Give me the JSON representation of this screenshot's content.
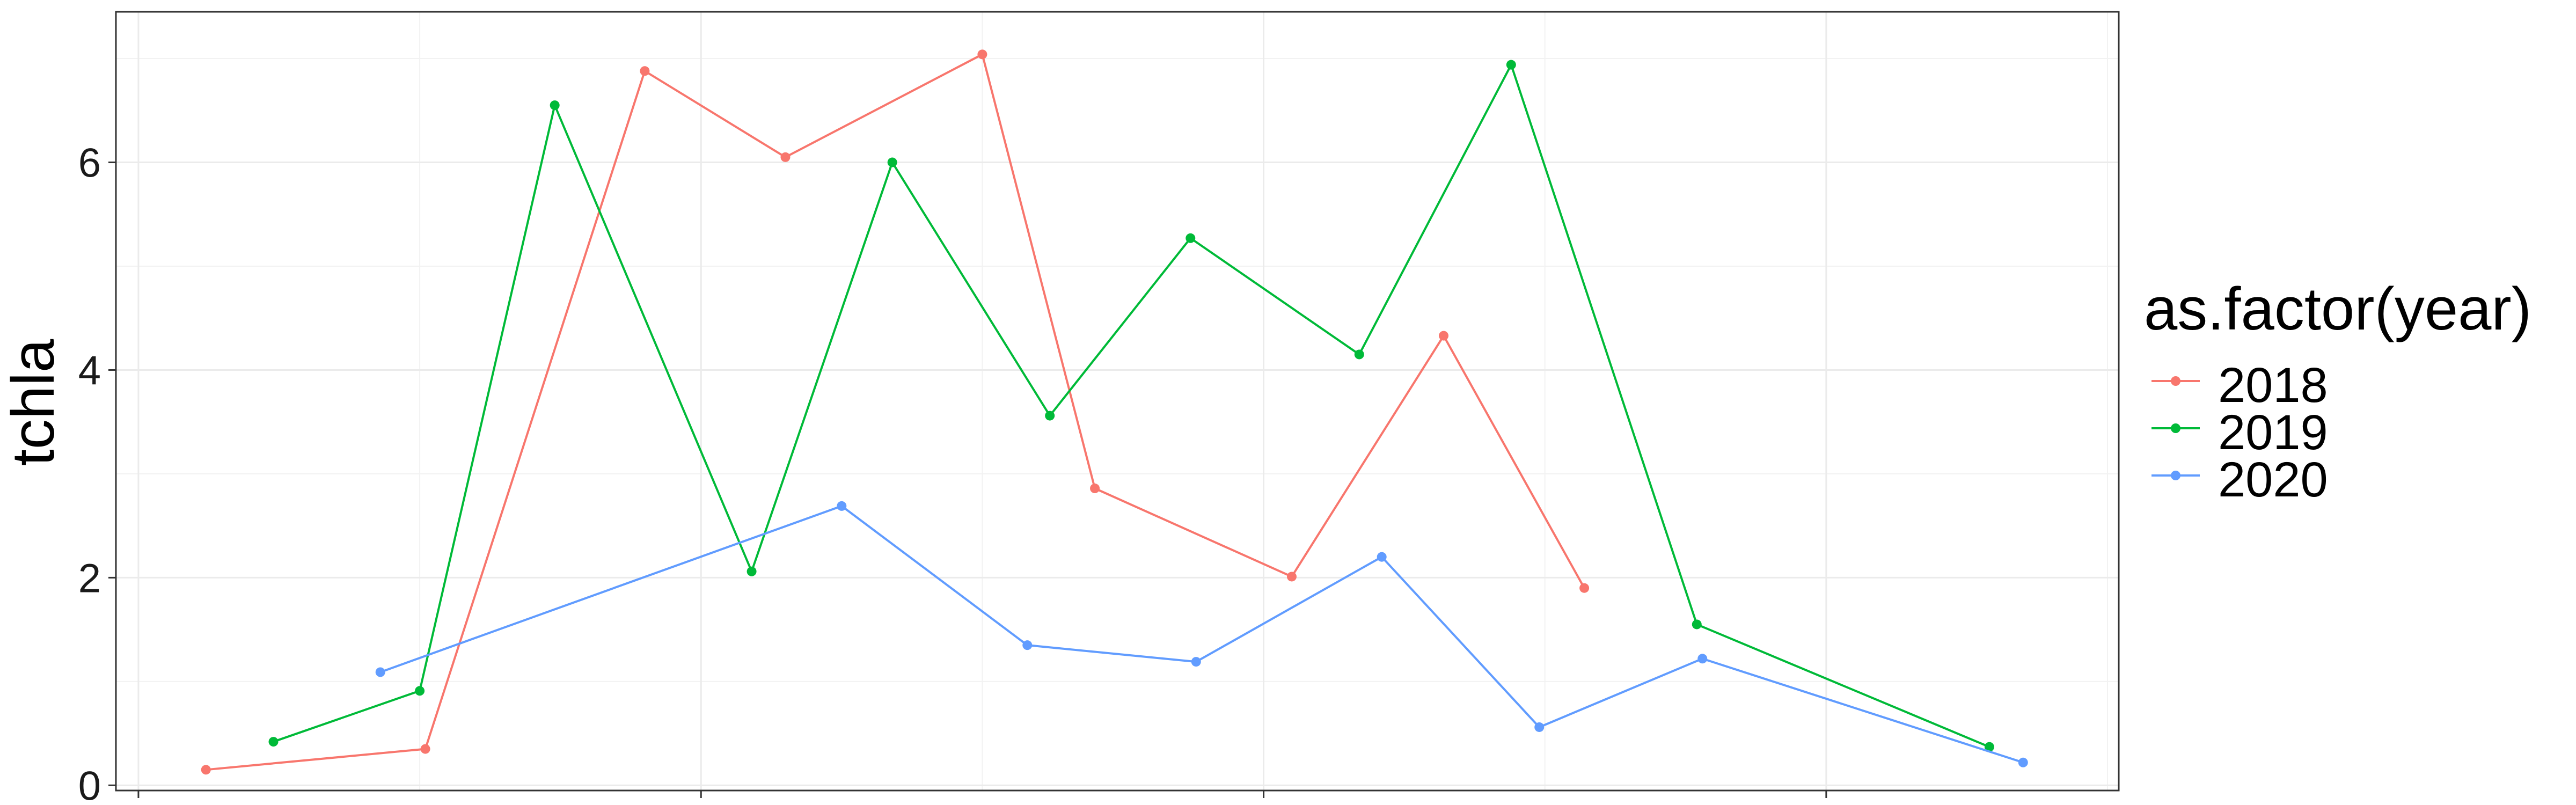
{
  "chart_data": {
    "type": "line",
    "title": "",
    "xlabel": "",
    "ylabel": "tchla",
    "x_tick_labels": [
      "",
      "",
      "",
      ""
    ],
    "x_ticks": [
      0,
      1,
      2,
      3
    ],
    "xlim": [
      -0.04,
      3.52
    ],
    "ylim": [
      -0.05,
      7.45
    ],
    "y_ticks": [
      0,
      2,
      4,
      6
    ],
    "y_tick_labels": [
      "0",
      "2",
      "4",
      "6"
    ],
    "grid": true,
    "legend": {
      "title": "as.factor(year)",
      "position": "right",
      "entries": [
        "2018",
        "2019",
        "2020"
      ]
    },
    "series": [
      {
        "name": "2018",
        "color": "#F8766D",
        "points": [
          {
            "x": 0.12,
            "y": 0.15
          },
          {
            "x": 0.51,
            "y": 0.35
          },
          {
            "x": 0.9,
            "y": 6.88
          },
          {
            "x": 1.15,
            "y": 6.05
          },
          {
            "x": 1.5,
            "y": 7.04
          },
          {
            "x": 1.7,
            "y": 2.86
          },
          {
            "x": 2.05,
            "y": 2.01
          },
          {
            "x": 2.32,
            "y": 4.33
          },
          {
            "x": 2.57,
            "y": 1.9
          }
        ]
      },
      {
        "name": "2019",
        "color": "#00BA38",
        "points": [
          {
            "x": 0.24,
            "y": 0.42
          },
          {
            "x": 0.5,
            "y": 0.91
          },
          {
            "x": 0.74,
            "y": 6.55
          },
          {
            "x": 1.09,
            "y": 2.06
          },
          {
            "x": 1.34,
            "y": 6.0
          },
          {
            "x": 1.62,
            "y": 3.56
          },
          {
            "x": 1.87,
            "y": 5.27
          },
          {
            "x": 2.17,
            "y": 4.15
          },
          {
            "x": 2.44,
            "y": 6.94
          },
          {
            "x": 2.77,
            "y": 1.55
          },
          {
            "x": 3.29,
            "y": 0.37
          }
        ]
      },
      {
        "name": "2020",
        "color": "#619CFF",
        "points": [
          {
            "x": 0.43,
            "y": 1.09
          },
          {
            "x": 1.25,
            "y": 2.69
          },
          {
            "x": 1.58,
            "y": 1.35
          },
          {
            "x": 1.88,
            "y": 1.19
          },
          {
            "x": 2.21,
            "y": 2.2
          },
          {
            "x": 2.49,
            "y": 0.56
          },
          {
            "x": 2.78,
            "y": 1.22
          },
          {
            "x": 3.35,
            "y": 0.22
          }
        ]
      }
    ]
  }
}
